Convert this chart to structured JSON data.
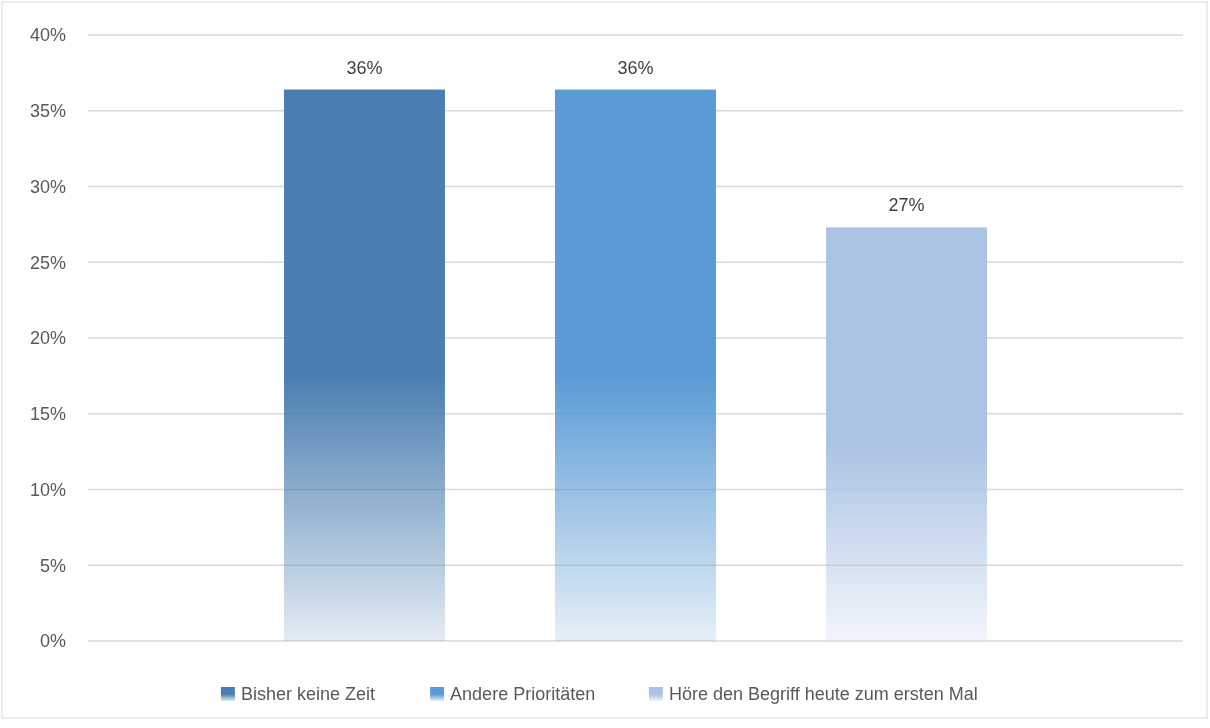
{
  "chart_data": {
    "type": "bar",
    "categories": [
      null
    ],
    "series": [
      {
        "name": "Bisher keine Zeit",
        "color": "#4a7eb0",
        "values": [
          36.4
        ],
        "value_labels": [
          "36%"
        ]
      },
      {
        "name": "Andere Prioritäten",
        "color": "#5b9bd5",
        "values": [
          36.4
        ],
        "value_labels": [
          "36%"
        ]
      },
      {
        "name": "Höre den Begriff heute zum ersten Mal",
        "color": "#abc3e3",
        "values": [
          27.3
        ],
        "value_labels": [
          "27%"
        ]
      }
    ],
    "ylim": [
      0,
      40
    ],
    "yticks": [
      {
        "value": 0,
        "label": "0%"
      },
      {
        "value": 5,
        "label": "5%"
      },
      {
        "value": 10,
        "label": "10%"
      },
      {
        "value": 15,
        "label": "15%"
      },
      {
        "value": 20,
        "label": "20%"
      },
      {
        "value": 25,
        "label": "25%"
      },
      {
        "value": 30,
        "label": "30%"
      },
      {
        "value": 35,
        "label": "35%"
      },
      {
        "value": 40,
        "label": "40%"
      }
    ],
    "grid": "y",
    "legend": "bottom"
  }
}
